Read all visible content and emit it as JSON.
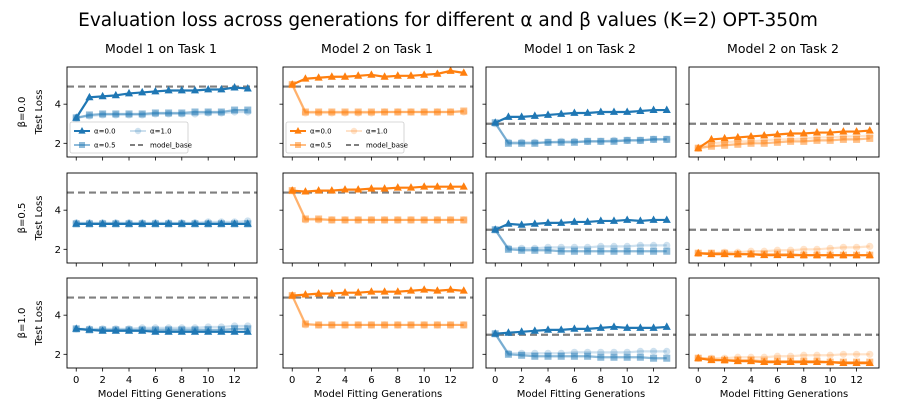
{
  "chart_data": {
    "type": "line",
    "title": "Evaluation loss across generations for different α and β values (K=2) OPT-350m",
    "xlabel": "Model Fitting Generations",
    "ylabel": "Test Loss",
    "x": [
      0,
      1,
      2,
      3,
      4,
      5,
      6,
      7,
      8,
      9,
      10,
      11,
      12,
      13
    ],
    "xticks": [
      0,
      2,
      4,
      6,
      8,
      10,
      12
    ],
    "yticks": [
      2,
      4
    ],
    "ylim": [
      1.3,
      5.9
    ],
    "column_titles": [
      "Model 1 on Task 1",
      "Model 2 on Task 1",
      "Model 1 on Task 2",
      "Model 2 on Task 2"
    ],
    "row_labels": [
      "β=0.0",
      "β=0.5",
      "β=1.0"
    ],
    "colors": {
      "model1": "#1f77b4",
      "model2": "#ff7f0e",
      "baseline": "#7f7f7f"
    },
    "legend": {
      "entries": [
        "α=0.0",
        "α=1.0",
        "α=0.5",
        "model_base"
      ]
    },
    "panels": [
      [
        {
          "color": "model1",
          "baseline": 4.9,
          "a00": [
            3.3,
            4.35,
            4.4,
            4.45,
            4.55,
            4.6,
            4.65,
            4.7,
            4.7,
            4.7,
            4.75,
            4.75,
            4.85,
            4.8
          ],
          "a05": [
            3.3,
            3.45,
            3.5,
            3.5,
            3.5,
            3.5,
            3.55,
            3.55,
            3.55,
            3.6,
            3.6,
            3.6,
            3.7,
            3.7
          ],
          "a10": [
            3.3,
            3.4,
            3.45,
            3.45,
            3.45,
            3.45,
            3.5,
            3.5,
            3.5,
            3.5,
            3.55,
            3.55,
            3.6,
            3.6
          ]
        },
        {
          "color": "model2",
          "baseline": 4.9,
          "a00": [
            5.0,
            5.3,
            5.35,
            5.4,
            5.4,
            5.45,
            5.5,
            5.4,
            5.45,
            5.45,
            5.5,
            5.55,
            5.7,
            5.6
          ],
          "a05": [
            5.0,
            3.6,
            3.6,
            3.6,
            3.6,
            3.6,
            3.6,
            3.6,
            3.6,
            3.6,
            3.6,
            3.6,
            3.6,
            3.65
          ],
          "a10": [
            5.0,
            3.55,
            3.55,
            3.55,
            3.55,
            3.55,
            3.55,
            3.6,
            3.6,
            3.6,
            3.6,
            3.6,
            3.6,
            3.6
          ]
        },
        {
          "color": "model1",
          "baseline": 3.0,
          "a00": [
            3.05,
            3.35,
            3.35,
            3.4,
            3.45,
            3.5,
            3.55,
            3.55,
            3.6,
            3.6,
            3.6,
            3.65,
            3.7,
            3.7
          ],
          "a05": [
            3.05,
            2.0,
            2.0,
            2.0,
            2.05,
            2.05,
            2.05,
            2.1,
            2.1,
            2.1,
            2.15,
            2.15,
            2.2,
            2.2
          ],
          "a10": [
            3.0,
            2.05,
            2.05,
            2.05,
            2.05,
            2.1,
            2.1,
            2.1,
            2.1,
            2.15,
            2.15,
            2.15,
            2.2,
            2.2
          ]
        },
        {
          "color": "model2",
          "baseline": 3.0,
          "a00": [
            1.75,
            2.2,
            2.25,
            2.3,
            2.35,
            2.4,
            2.45,
            2.5,
            2.5,
            2.55,
            2.55,
            2.6,
            2.6,
            2.65
          ],
          "a05": [
            1.75,
            1.85,
            1.9,
            1.95,
            2.0,
            2.0,
            2.05,
            2.1,
            2.1,
            2.15,
            2.15,
            2.2,
            2.2,
            2.25
          ],
          "a10": [
            1.75,
            2.0,
            2.05,
            2.1,
            2.1,
            2.15,
            2.2,
            2.2,
            2.25,
            2.3,
            2.3,
            2.35,
            2.35,
            2.4
          ]
        }
      ],
      [
        {
          "color": "model1",
          "baseline": 4.9,
          "a00": [
            3.3,
            3.3,
            3.3,
            3.3,
            3.3,
            3.3,
            3.3,
            3.3,
            3.3,
            3.3,
            3.3,
            3.3,
            3.3,
            3.3
          ],
          "a05": [
            3.3,
            3.3,
            3.3,
            3.3,
            3.3,
            3.3,
            3.3,
            3.3,
            3.3,
            3.3,
            3.3,
            3.3,
            3.3,
            3.3
          ],
          "a10": [
            3.35,
            3.35,
            3.35,
            3.35,
            3.35,
            3.35,
            3.35,
            3.35,
            3.35,
            3.35,
            3.4,
            3.4,
            3.4,
            3.45
          ]
        },
        {
          "color": "model2",
          "baseline": 4.9,
          "a00": [
            5.0,
            4.95,
            5.0,
            5.0,
            5.05,
            5.05,
            5.1,
            5.1,
            5.15,
            5.15,
            5.2,
            5.2,
            5.2,
            5.2
          ],
          "a05": [
            5.0,
            3.55,
            3.55,
            3.5,
            3.5,
            3.5,
            3.5,
            3.5,
            3.5,
            3.5,
            3.5,
            3.5,
            3.5,
            3.5
          ],
          "a10": [
            5.0,
            3.5,
            3.5,
            3.5,
            3.5,
            3.5,
            3.5,
            3.5,
            3.5,
            3.5,
            3.5,
            3.5,
            3.5,
            3.5
          ]
        },
        {
          "color": "model1",
          "baseline": 3.0,
          "a00": [
            3.0,
            3.3,
            3.25,
            3.3,
            3.35,
            3.35,
            3.4,
            3.4,
            3.45,
            3.45,
            3.5,
            3.45,
            3.5,
            3.5
          ],
          "a05": [
            3.0,
            2.0,
            1.95,
            1.95,
            1.95,
            1.9,
            1.9,
            1.9,
            1.9,
            1.9,
            1.9,
            1.9,
            1.9,
            1.9
          ],
          "a10": [
            3.0,
            2.05,
            2.05,
            2.05,
            2.1,
            2.1,
            2.1,
            2.1,
            2.15,
            2.15,
            2.15,
            2.2,
            2.2,
            2.2
          ]
        },
        {
          "color": "model2",
          "baseline": 3.0,
          "a00": [
            1.8,
            1.75,
            1.75,
            1.75,
            1.75,
            1.7,
            1.7,
            1.7,
            1.7,
            1.7,
            1.7,
            1.7,
            1.7,
            1.7
          ],
          "a05": [
            1.8,
            1.8,
            1.8,
            1.75,
            1.75,
            1.75,
            1.75,
            1.75,
            1.7,
            1.7,
            1.7,
            1.7,
            1.7,
            1.7
          ],
          "a10": [
            1.8,
            1.8,
            1.85,
            1.85,
            1.9,
            1.9,
            1.95,
            1.95,
            2.0,
            2.0,
            2.05,
            2.1,
            2.1,
            2.15
          ]
        }
      ],
      [
        {
          "color": "model1",
          "baseline": 4.9,
          "a00": [
            3.3,
            3.25,
            3.2,
            3.2,
            3.2,
            3.2,
            3.15,
            3.15,
            3.15,
            3.15,
            3.15,
            3.15,
            3.15,
            3.15
          ],
          "a05": [
            3.3,
            3.25,
            3.25,
            3.25,
            3.25,
            3.25,
            3.25,
            3.25,
            3.25,
            3.25,
            3.25,
            3.25,
            3.3,
            3.3
          ],
          "a10": [
            3.3,
            3.3,
            3.3,
            3.3,
            3.3,
            3.35,
            3.35,
            3.35,
            3.35,
            3.35,
            3.4,
            3.4,
            3.45,
            3.45
          ]
        },
        {
          "color": "model2",
          "baseline": 4.9,
          "a00": [
            5.0,
            5.05,
            5.1,
            5.1,
            5.15,
            5.15,
            5.2,
            5.2,
            5.2,
            5.25,
            5.3,
            5.25,
            5.3,
            5.25
          ],
          "a05": [
            5.0,
            3.55,
            3.5,
            3.5,
            3.5,
            3.5,
            3.5,
            3.5,
            3.5,
            3.5,
            3.5,
            3.5,
            3.5,
            3.5
          ],
          "a10": [
            5.0,
            3.5,
            3.5,
            3.5,
            3.5,
            3.5,
            3.5,
            3.5,
            3.5,
            3.5,
            3.5,
            3.5,
            3.5,
            3.5
          ]
        },
        {
          "color": "model1",
          "baseline": 3.0,
          "a00": [
            3.05,
            3.1,
            3.15,
            3.2,
            3.25,
            3.25,
            3.3,
            3.3,
            3.35,
            3.4,
            3.35,
            3.35,
            3.35,
            3.4
          ],
          "a05": [
            3.05,
            2.0,
            1.95,
            1.9,
            1.9,
            1.9,
            1.9,
            1.9,
            1.85,
            1.85,
            1.85,
            1.85,
            1.8,
            1.8
          ],
          "a10": [
            3.05,
            2.05,
            2.05,
            2.05,
            2.05,
            2.05,
            2.1,
            2.1,
            2.1,
            2.1,
            2.1,
            2.15,
            2.15,
            2.15
          ]
        },
        {
          "color": "model2",
          "baseline": 3.0,
          "a00": [
            1.8,
            1.7,
            1.7,
            1.65,
            1.65,
            1.6,
            1.6,
            1.6,
            1.6,
            1.6,
            1.6,
            1.55,
            1.55,
            1.55
          ],
          "a05": [
            1.8,
            1.75,
            1.7,
            1.7,
            1.7,
            1.65,
            1.65,
            1.65,
            1.65,
            1.65,
            1.6,
            1.6,
            1.6,
            1.6
          ],
          "a10": [
            1.8,
            1.8,
            1.8,
            1.85,
            1.85,
            1.85,
            1.9,
            1.9,
            1.95,
            1.95,
            1.95,
            2.0,
            2.0,
            2.0
          ]
        }
      ]
    ]
  }
}
